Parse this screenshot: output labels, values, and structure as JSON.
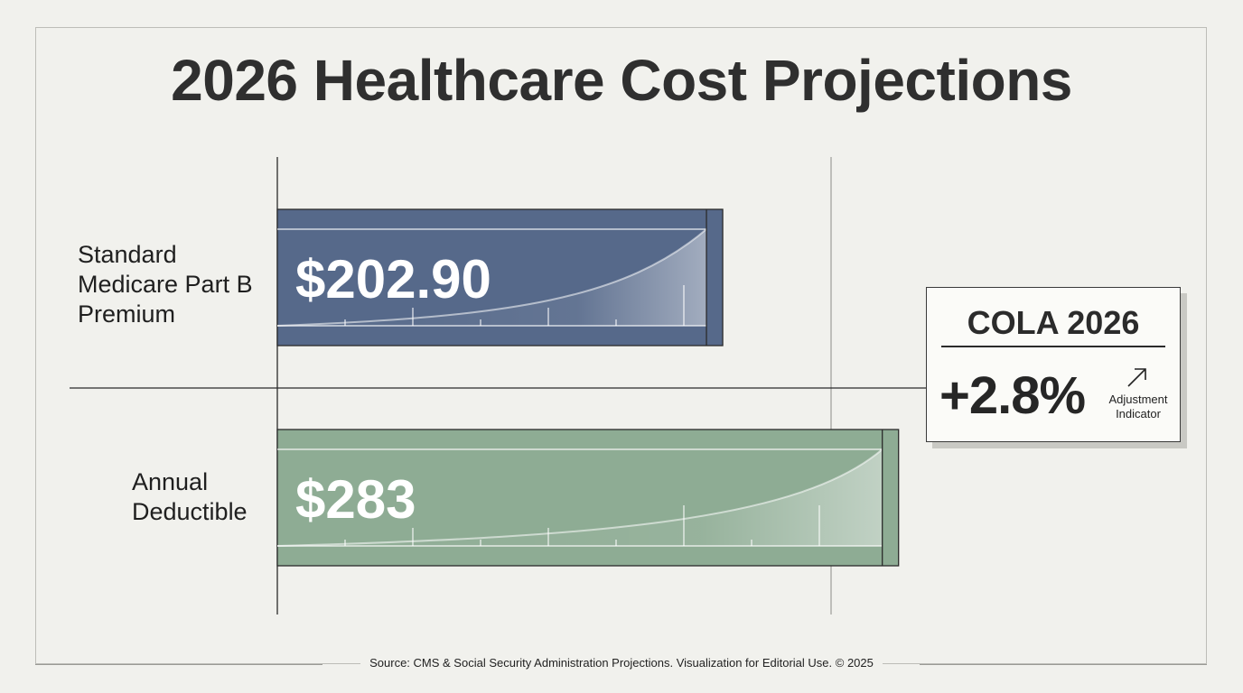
{
  "chart_data": {
    "type": "bar",
    "orientation": "horizontal",
    "title": "2026 Healthcare Cost Projections",
    "categories": [
      "Standard Medicare Part B Premium",
      "Annual Deductible"
    ],
    "value_labels": [
      "$202.90",
      "$283"
    ],
    "values": [
      202.9,
      283
    ],
    "colors": [
      "#56698a",
      "#8eac94"
    ],
    "legend": "none",
    "grid": false
  },
  "cola": {
    "title": "COLA 2026",
    "value": "+2.8%",
    "caption_line1": "Adjustment",
    "caption_line2": "Indicator",
    "icon": "arrow-up-right-icon"
  },
  "source": "Source: CMS & Social Security Administration Projections. Visualization for Editorial Use. © 2025"
}
